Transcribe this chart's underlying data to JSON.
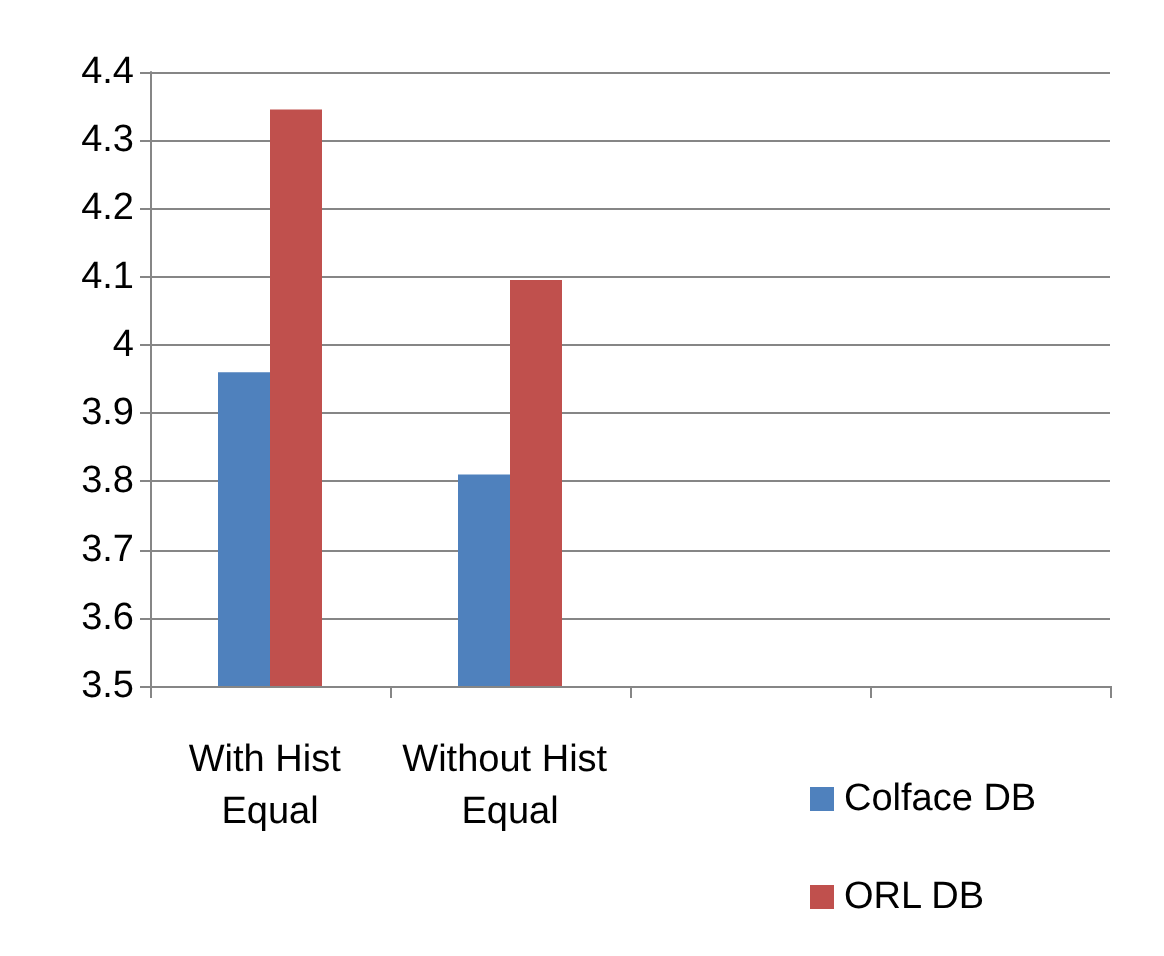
{
  "chart_data": {
    "type": "bar",
    "categories": [
      "With Hist Equal",
      "Without Hist Equal",
      null,
      null
    ],
    "series": [
      {
        "name": "Colface DB",
        "color": "#4f81bd",
        "values": [
          3.96,
          3.81,
          null,
          null
        ]
      },
      {
        "name": "ORL DB",
        "color": "#c0504d",
        "values": [
          4.345,
          4.095,
          null,
          null
        ]
      }
    ],
    "ylim": [
      3.5,
      4.4
    ],
    "yticks": [
      3.5,
      3.6,
      3.7,
      3.8,
      3.9,
      4,
      4.1,
      4.2,
      4.3,
      4.4
    ],
    "grid": "y",
    "legend": "bottom right"
  }
}
